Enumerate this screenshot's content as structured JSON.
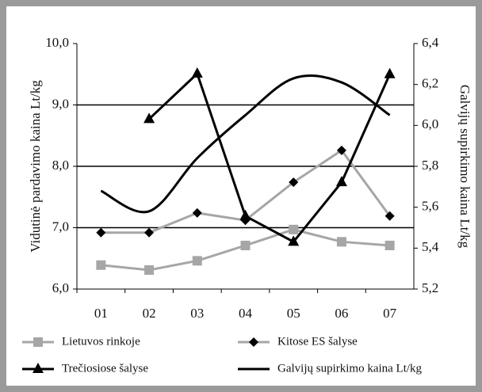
{
  "chart_data": {
    "type": "line",
    "y_label": "Vidutinė pardavimo kaina Lt/kg",
    "y2_label": "Galvijų supirkimo kaina Lt/kg",
    "categories": [
      "01",
      "02",
      "03",
      "04",
      "05",
      "06",
      "07"
    ],
    "ylim": [
      6,
      10
    ],
    "yticks": [
      {
        "value": 6,
        "label": "6,0"
      },
      {
        "value": 7,
        "label": "7,0"
      },
      {
        "value": 8,
        "label": "8,0"
      },
      {
        "value": 9,
        "label": "9,0"
      },
      {
        "value": 10,
        "label": "10,0"
      }
    ],
    "y2lim": [
      5.2,
      6.4
    ],
    "y2ticks": [
      {
        "value": 5.2,
        "label": "5,2"
      },
      {
        "value": 5.4,
        "label": "5,4"
      },
      {
        "value": 5.6,
        "label": "5,6"
      },
      {
        "value": 5.8,
        "label": "5,8"
      },
      {
        "value": 6.0,
        "label": "6,0"
      },
      {
        "value": 6.2,
        "label": "6,2"
      },
      {
        "value": 6.4,
        "label": "6,4"
      }
    ],
    "grid": true,
    "legend": "bottom",
    "series": [
      {
        "name": "Lietuvos rinkoje",
        "color": "#a6a6a6",
        "marker": "square",
        "marker_color": "#a6a6a6",
        "values": [
          6.39,
          6.31,
          6.46,
          6.71,
          6.97,
          6.77,
          6.71
        ]
      },
      {
        "name": "Kitose ES šalyse",
        "color": "#a6a6a6",
        "marker": "diamond",
        "marker_color": "#000000",
        "values": [
          6.92,
          6.92,
          7.24,
          7.12,
          7.74,
          8.26,
          7.19
        ]
      },
      {
        "name": "Trečiosiose šalyse",
        "color": "#000000",
        "marker": "triangle",
        "marker_color": "#000000",
        "values": [
          null,
          8.77,
          9.51,
          7.19,
          6.77,
          7.74,
          9.5
        ]
      },
      {
        "name": "Galvijų supirkimo kaina Lt/kg",
        "color": "#000000",
        "marker": "none",
        "smooth": true,
        "axis": "y2",
        "values": [
          5.68,
          5.58,
          5.84,
          6.05,
          6.23,
          6.21,
          6.05
        ]
      }
    ]
  }
}
